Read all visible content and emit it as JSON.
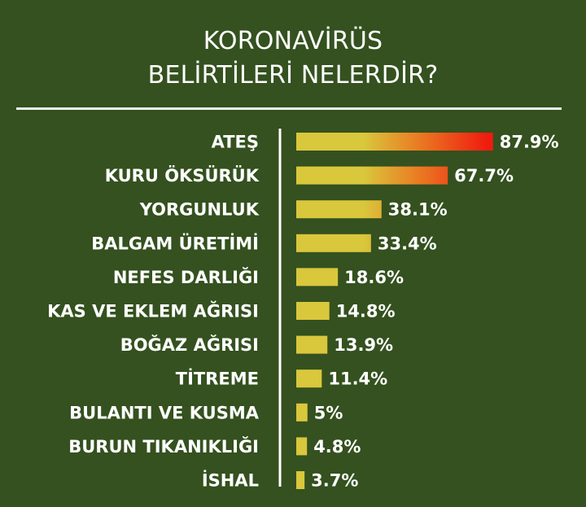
{
  "header": {
    "title_line1": "KORONAVİRÜS",
    "title_line2": "BELİRTİLERİ NELERDİR?"
  },
  "colors": {
    "background": "#34511f",
    "bar_base": "#d9c73c",
    "bar_hot": "#ef1c10",
    "text": "#ffffff",
    "divider": "#f4f4f0"
  },
  "chart_data": {
    "type": "bar",
    "orientation": "horizontal",
    "title": "KORONAVİRÜS BELİRTİLERİ NELERDİR?",
    "xlabel": "",
    "ylabel": "",
    "xlim": [
      0,
      100
    ],
    "grid": false,
    "categories": [
      "ATEŞ",
      "KURU ÖKSÜRÜK",
      "YORGUNLUK",
      "BALGAM ÜRETİMİ",
      "NEFES DARLIĞI",
      "KAS VE EKLEM AĞRISI",
      "BOĞAZ AĞRISI",
      "TİTREME",
      "BULANTI VE KUSMA",
      "BURUN TIKANIKLIĞI",
      "İSHAL"
    ],
    "values": [
      87.9,
      67.7,
      38.1,
      33.4,
      18.6,
      14.8,
      13.9,
      11.4,
      5,
      4.8,
      3.7
    ],
    "value_labels": [
      "87.9%",
      "67.7%",
      "38.1%",
      "33.4%",
      "18.6%",
      "14.8%",
      "13.9%",
      "11.4%",
      "5%",
      "4.8%",
      "3.7%"
    ]
  }
}
